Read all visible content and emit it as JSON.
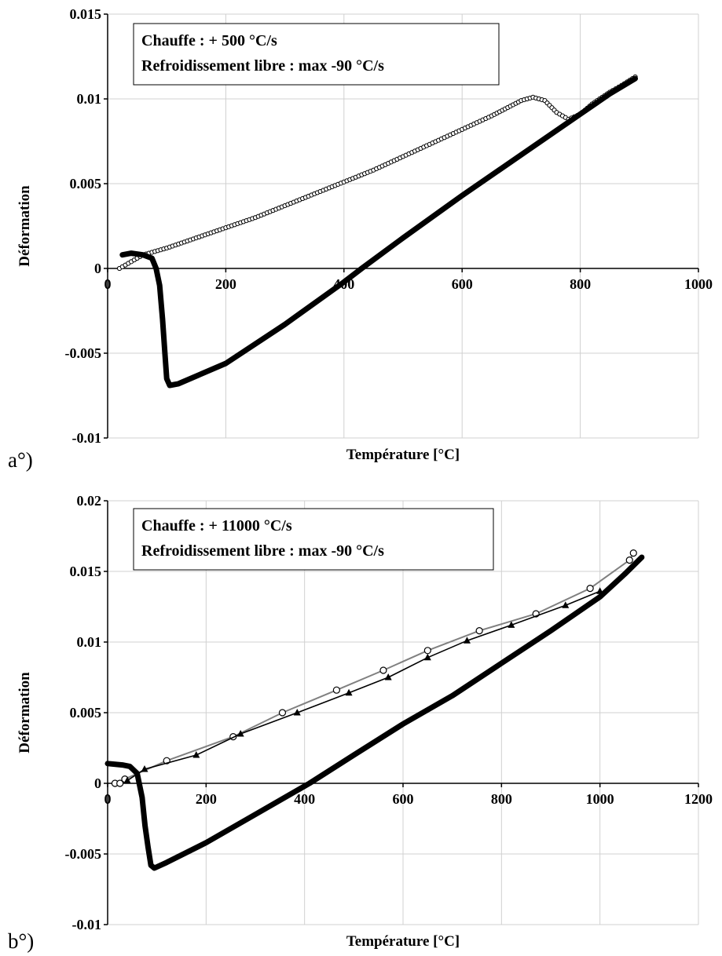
{
  "chart_data": [
    {
      "type": "scatter",
      "panel_label": "a°)",
      "xlabel": "Température [°C]",
      "ylabel": "Déformation",
      "xlim": [
        0,
        1000
      ],
      "ylim": [
        -0.01,
        0.015
      ],
      "x_ticks": [
        "0",
        "200",
        "400",
        "600",
        "800",
        "1000"
      ],
      "y_ticks": [
        "-0.01",
        "-0.005",
        "0",
        "0.005",
        "0.01",
        "0.015"
      ],
      "grid": true,
      "annotation_lines": [
        "Chauffe : + 500 °C/s",
        "Refroidissement libre : max -90 °C/s"
      ],
      "series": [
        {
          "marker": "open-circle",
          "x": [
            20,
            40,
            60,
            100,
            150,
            200,
            250,
            300,
            350,
            400,
            450,
            500,
            550,
            600,
            650,
            700,
            720,
            740,
            760,
            780,
            800,
            820,
            850,
            870,
            893
          ],
          "y": [
            0,
            0.0004,
            0.0008,
            0.0012,
            0.0018,
            0.0024,
            0.003,
            0.0037,
            0.0044,
            0.0051,
            0.0058,
            0.0066,
            0.0074,
            0.0082,
            0.009,
            0.0099,
            0.0101,
            0.0099,
            0.0092,
            0.0088,
            0.0091,
            0.0097,
            0.0104,
            0.0108,
            0.0113
          ]
        },
        {
          "marker": "filled-dense",
          "x": [
            893,
            850,
            800,
            700,
            600,
            500,
            430,
            400,
            300,
            200,
            120,
            105,
            100,
            97,
            93,
            88,
            82,
            75,
            60,
            40,
            25
          ],
          "y": [
            0.0112,
            0.0103,
            0.0091,
            0.0067,
            0.0043,
            0.0018,
            0,
            -0.0008,
            -0.0033,
            -0.0056,
            -0.0068,
            -0.0069,
            -0.0065,
            -0.005,
            -0.003,
            -0.001,
            0,
            0.0006,
            0.0008,
            0.0009,
            0.0008
          ]
        }
      ]
    },
    {
      "type": "scatter",
      "panel_label": "b°)",
      "xlabel": "Température [°C]",
      "ylabel": "Déformation",
      "xlim": [
        0,
        1200
      ],
      "ylim": [
        -0.01,
        0.02
      ],
      "x_ticks": [
        "0",
        "200",
        "400",
        "600",
        "800",
        "1000",
        "1200"
      ],
      "y_ticks": [
        "-0.01",
        "-0.005",
        "0",
        "0.005",
        "0.01",
        "0.015",
        "0.02"
      ],
      "grid": true,
      "annotation_lines": [
        "Chauffe : + 11000 °C/s",
        "Refroidissement libre : max -90 °C/s"
      ],
      "series": [
        {
          "marker": "open-circle-gray-line",
          "x": [
            15,
            25,
            35,
            120,
            255,
            355,
            465,
            560,
            650,
            755,
            870,
            980,
            1060,
            1068
          ],
          "y": [
            0,
            0,
            0.0003,
            0.0016,
            0.0033,
            0.005,
            0.0066,
            0.008,
            0.0094,
            0.0108,
            0.012,
            0.0138,
            0.0158,
            0.0163
          ]
        },
        {
          "marker": "filled-triangle-line",
          "x": [
            40,
            75,
            180,
            270,
            385,
            490,
            570,
            650,
            730,
            820,
            930,
            1000
          ],
          "y": [
            0.0002,
            0.001,
            0.002,
            0.0035,
            0.005,
            0.0064,
            0.0075,
            0.0089,
            0.0101,
            0.0112,
            0.0126,
            0.0136
          ]
        },
        {
          "marker": "filled-dense",
          "x": [
            1085,
            1050,
            1000,
            900,
            800,
            700,
            600,
            500,
            410,
            300,
            200,
            120,
            95,
            88,
            82,
            76,
            70,
            60,
            45,
            30,
            0
          ],
          "y": [
            0.016,
            0.0148,
            0.0132,
            0.0108,
            0.0085,
            0.0062,
            0.0042,
            0.002,
            0,
            -0.0022,
            -0.0042,
            -0.0056,
            -0.006,
            -0.0058,
            -0.0045,
            -0.003,
            -0.001,
            0.0007,
            0.0012,
            0.0013,
            0.0014
          ]
        }
      ]
    }
  ]
}
